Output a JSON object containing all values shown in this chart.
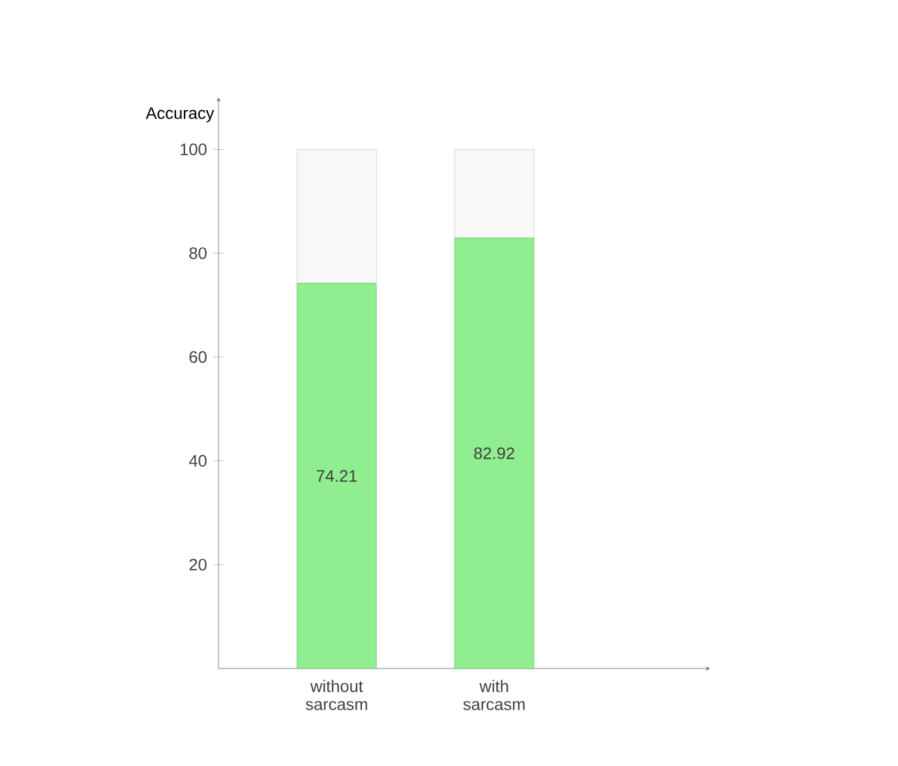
{
  "chart_data": {
    "type": "bar",
    "ylabel": "Accuracy",
    "categories": [
      "without sarcasm",
      "with sarcasm"
    ],
    "stacked": true,
    "series": [
      {
        "color": "#90ee90",
        "values": [
          74.21,
          82.92
        ],
        "value_labels": [
          "74.21",
          "82.92"
        ]
      },
      {
        "color": "#f8f8f8",
        "values": [
          25.79,
          17.08
        ]
      }
    ],
    "ylim": [
      0,
      110
    ],
    "yticks": [
      20,
      40,
      60,
      80,
      100
    ]
  }
}
